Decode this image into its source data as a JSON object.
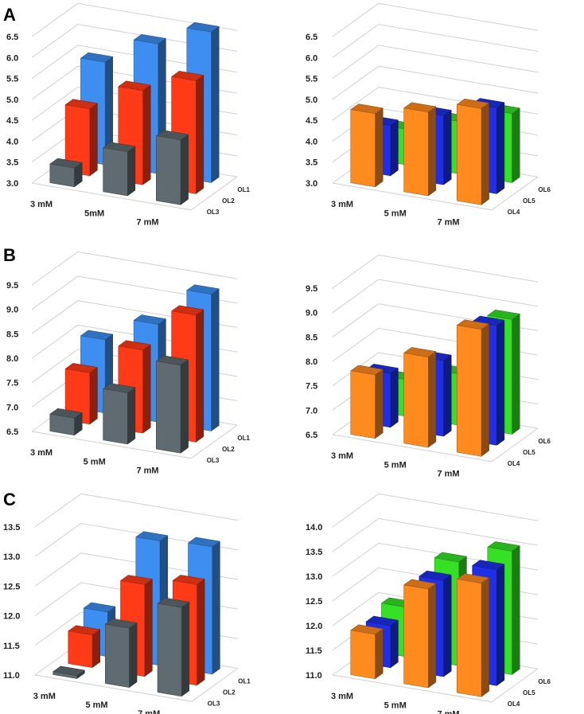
{
  "panels": {
    "A": "A",
    "B": "B",
    "C": "C"
  },
  "colors": {
    "OL1": "#3d8ef0",
    "OL2": "#ff3b17",
    "OL3": "#5f6b70",
    "OL4": "#ff8a1e",
    "OL5": "#1f2fe8",
    "OL6": "#35e025"
  },
  "chart_data": [
    {
      "type": "bar",
      "panel": "A",
      "position": "left",
      "categories": [
        "3 mM",
        "5mM",
        "7 mM"
      ],
      "series": [
        {
          "name": "OL3",
          "values": [
            3.45,
            4.05,
            4.55
          ]
        },
        {
          "name": "OL2",
          "values": [
            4.6,
            5.25,
            5.7
          ]
        },
        {
          "name": "OL1",
          "values": [
            5.45,
            6.1,
            6.6
          ]
        }
      ],
      "yticks": [
        "3.0",
        "3.5",
        "4.0",
        "4.5",
        "5.0",
        "5.5",
        "6.0",
        "6.5"
      ],
      "ylim": [
        3.0,
        6.5
      ]
    },
    {
      "type": "bar",
      "panel": "A",
      "position": "right",
      "categories": [
        "3 mM",
        "5 mM",
        "7 mM"
      ],
      "series": [
        {
          "name": "OL4",
          "values": [
            4.75,
            5.0,
            5.3
          ]
        },
        {
          "name": "OL5",
          "values": [
            4.2,
            4.65,
            5.05
          ]
        },
        {
          "name": "OL6",
          "values": [
            3.85,
            4.25,
            4.65
          ]
        }
      ],
      "yticks": [
        "3.0",
        "3.5",
        "4.0",
        "4.5",
        "5.0",
        "5.5",
        "6.0",
        "6.5"
      ],
      "ylim": [
        3.0,
        6.5
      ]
    },
    {
      "type": "bar",
      "panel": "B",
      "position": "left",
      "categories": [
        "3 mM",
        "5 mM",
        "7 mM"
      ],
      "series": [
        {
          "name": "OL3",
          "values": [
            6.85,
            7.55,
            8.3
          ]
        },
        {
          "name": "OL2",
          "values": [
            7.55,
            8.2,
            9.1
          ]
        },
        {
          "name": "OL1",
          "values": [
            8.0,
            8.5,
            9.3
          ]
        }
      ],
      "yticks": [
        "6.5",
        "7.0",
        "7.5",
        "8.0",
        "8.5",
        "9.0",
        "9.5"
      ],
      "ylim": [
        6.5,
        9.5
      ]
    },
    {
      "type": "bar",
      "panel": "B",
      "position": "right",
      "categories": [
        "3 mM",
        "5 mM",
        "7 mM"
      ],
      "series": [
        {
          "name": "OL4",
          "values": [
            7.8,
            8.35,
            9.1
          ]
        },
        {
          "name": "OL5",
          "values": [
            7.6,
            8.05,
            8.95
          ]
        },
        {
          "name": "OL6",
          "values": [
            7.25,
            7.55,
            8.85
          ]
        }
      ],
      "yticks": [
        "6.5",
        "7.0",
        "7.5",
        "8.0",
        "8.5",
        "9.0",
        "9.5"
      ],
      "ylim": [
        6.5,
        9.5
      ]
    },
    {
      "type": "bar",
      "panel": "C",
      "position": "left",
      "categories": [
        "3 mM",
        "5 mM",
        "7 mM"
      ],
      "series": [
        {
          "name": "OL3",
          "values": [
            11.05,
            12.0,
            12.5
          ]
        },
        {
          "name": "OL2",
          "values": [
            11.55,
            12.55,
            12.7
          ]
        },
        {
          "name": "OL1",
          "values": [
            11.75,
            13.1,
            13.15
          ]
        }
      ],
      "yticks": [
        "11.0",
        "11.5",
        "12.0",
        "12.5",
        "13.0",
        "13.5"
      ],
      "ylim": [
        11.0,
        13.5
      ]
    },
    {
      "type": "bar",
      "panel": "C",
      "position": "right",
      "categories": [
        "3 mM",
        "5 mM",
        "7 mM"
      ],
      "series": [
        {
          "name": "OL4",
          "values": [
            11.9,
            13.0,
            13.3
          ]
        },
        {
          "name": "OL5",
          "values": [
            11.85,
            12.95,
            13.35
          ]
        },
        {
          "name": "OL6",
          "values": [
            12.0,
            13.1,
            13.5
          ]
        }
      ],
      "yticks": [
        "11.0",
        "11.5",
        "12.0",
        "12.5",
        "13.0",
        "13.5",
        "14.0"
      ],
      "ylim": [
        11.0,
        14.0
      ]
    }
  ]
}
